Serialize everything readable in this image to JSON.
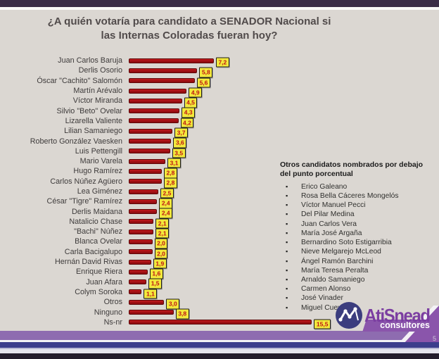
{
  "slide": {
    "page_number": "5"
  },
  "title": {
    "line1": "¿A quién votaría para candidato a SENADOR Nacional si",
    "line2": "las Internas Coloradas fueran hoy?"
  },
  "chart_data": {
    "type": "bar",
    "orientation": "horizontal",
    "title": "¿A quién votaría para candidato a SENADOR Nacional si las Internas Coloradas fueran hoy?",
    "unit": "percent",
    "decimal_separator": ",",
    "xlim": [
      0,
      16.5
    ],
    "grid": false,
    "legend": false,
    "bar_color": "#a51115",
    "value_chip_bg": "#f2e93c",
    "value_chip_text_color": "#bf1313",
    "categories": [
      "Juan Carlos Baruja",
      "Derlis Osorio",
      "Óscar \"Cachito\" Salomón",
      "Martín Arévalo",
      "Víctor Miranda",
      "Silvio \"Beto\" Ovelar",
      "Lizarella Valiente",
      "Lilian Samaniego",
      "Roberto González Vaesken",
      "Luis Pettengill",
      "Mario Varela",
      "Hugo Ramírez",
      "Carlos Núñez Agüero",
      "Lea Giménez",
      "César \"Tigre\" Ramírez",
      "Derlis Maidana",
      "Natalicio Chase",
      "\"Bachi\" Núñez",
      "Blanca Ovelar",
      "Carla Bacigalupo",
      "Hernán David Rivas",
      "Enrique Riera",
      "Juan Afara",
      "Colym Soroka",
      "Otros",
      "Ninguno",
      "Ns-nr"
    ],
    "values": [
      7.2,
      5.8,
      5.6,
      4.9,
      4.5,
      4.3,
      4.2,
      3.7,
      3.6,
      3.5,
      3.1,
      2.8,
      2.8,
      2.5,
      2.4,
      2.4,
      2.1,
      2.1,
      2.0,
      2.0,
      1.9,
      1.6,
      1.5,
      1.1,
      3.0,
      3.8,
      15.5
    ],
    "value_labels": [
      "7,2",
      "5,8",
      "5,6",
      "4,9",
      "4,5",
      "4,3",
      "4,2",
      "3,7",
      "3,6",
      "3,5",
      "3,1",
      "2,8",
      "2,8",
      "2,5",
      "2,4",
      "2,4",
      "2,1",
      "2,1",
      "2,0",
      "2,0",
      "1,9",
      "1,6",
      "1,5",
      "1,1",
      "3,0",
      "3,8",
      "15,5"
    ]
  },
  "side_panel": {
    "heading": "Otros candidatos nombrados por debajo del punto porcentual",
    "items": [
      "Erico Galeano",
      "Rosa Bella Cáceres Mongelós",
      "Víctor Manuel Pecci",
      "Del Pilar Medina",
      "Juan Carlos Vera",
      "María José Argaña",
      "Bernardino Soto Estigarribia",
      "Nieve Melgarejo McLeod",
      "Ángel Ramón Barchini",
      "María Teresa Peralta",
      "Arnaldo Samaniego",
      "Carmen Alonso",
      "José Vinader",
      "Miguel Cuevas"
    ]
  },
  "logo": {
    "brand": "AtiSnead",
    "tagline": "consultores",
    "icon": "line-chart-icon",
    "brand_color": "#7b3da1",
    "banner_color": "#8a55ab"
  }
}
